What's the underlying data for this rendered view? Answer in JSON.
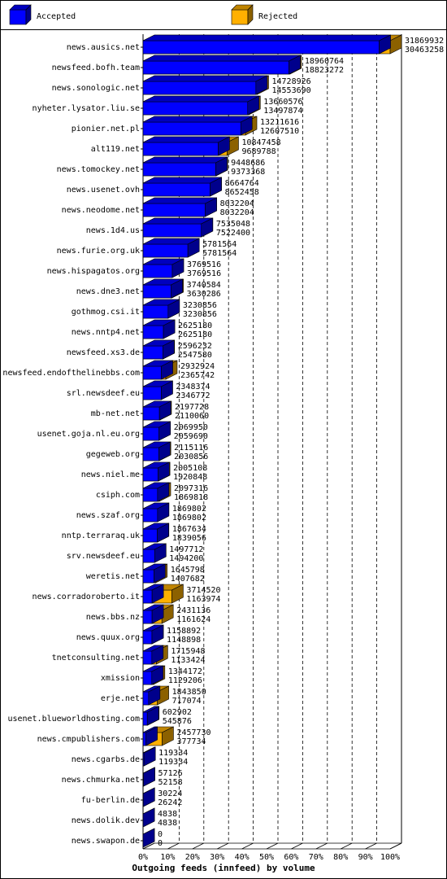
{
  "chart_data": {
    "type": "bar",
    "orientation": "horizontal",
    "bar_mode": "overlay",
    "legend": "top",
    "xlabel": "Outgoing feeds (innfeed) by volume",
    "categories": [
      "news.ausics.net",
      "newsfeed.bofh.team",
      "news.sonologic.net",
      "nyheter.lysator.liu.se",
      "pionier.net.pl",
      "alt119.net",
      "news.tomockey.net",
      "news.usenet.ovh",
      "news.neodome.net",
      "news.1d4.us",
      "news.furie.org.uk",
      "news.hispagatos.org",
      "news.dne3.net",
      "gothmog.csi.it",
      "news.nntp4.net",
      "newsfeed.xs3.de",
      "newsfeed.endofthelinebbs.com",
      "srl.newsdeef.eu",
      "mb-net.net",
      "usenet.goja.nl.eu.org",
      "gegeweb.org",
      "news.niel.me",
      "csiph.com",
      "news.szaf.org",
      "nntp.terraraq.uk",
      "srv.newsdeef.eu",
      "weretis.net",
      "news.corradoroberto.it",
      "news.bbs.nz",
      "news.quux.org",
      "tnetconsulting.net",
      "xmission",
      "erje.net",
      "usenet.blueworldhosting.com",
      "news.cmpublishers.com",
      "news.cgarbs.de",
      "news.chmurka.net",
      "fu-berlin.de",
      "news.dolik.dev",
      "news.swapon.de"
    ],
    "series": [
      {
        "name": "Rejected",
        "color": "#ffb000",
        "values": [
          31869932,
          18960764,
          14728926,
          13660576,
          13211616,
          10847458,
          9448686,
          8664764,
          8032204,
          7535048,
          5781564,
          3769516,
          3740584,
          3230856,
          2625180,
          2596232,
          2932924,
          2348374,
          2197728,
          2069950,
          2115116,
          2005108,
          2097316,
          1869802,
          1867634,
          1497712,
          1645798,
          3714520,
          2431136,
          1158892,
          1715948,
          1344172,
          1843850,
          602902,
          2457730,
          119334,
          57126,
          30224,
          4838,
          0
        ]
      },
      {
        "name": "Accepted",
        "color": "#0000ff",
        "values": [
          30463258,
          18823272,
          14553690,
          13497874,
          12607510,
          9689788,
          9373368,
          8652458,
          8032204,
          7522400,
          5781564,
          3769516,
          3630286,
          3230856,
          2625180,
          2547580,
          2365742,
          2346772,
          2110060,
          2059690,
          2030856,
          1920848,
          1869818,
          1869802,
          1839056,
          1494200,
          1407682,
          1163974,
          1161624,
          1148898,
          1133424,
          1129206,
          717074,
          545876,
          377734,
          119334,
          52158,
          26242,
          4838,
          0
        ]
      }
    ],
    "xlim": [
      0,
      31869932
    ],
    "xticks": [
      {
        "value": 0,
        "label": "0%"
      },
      {
        "value": 3186993.2,
        "label": "10%"
      },
      {
        "value": 6373986.4,
        "label": "20%"
      },
      {
        "value": 9560979.6,
        "label": "30%"
      },
      {
        "value": 12747972.8,
        "label": "40%"
      },
      {
        "value": 15934966,
        "label": "50%"
      },
      {
        "value": 19121959.2,
        "label": "60%"
      },
      {
        "value": 22308952.4,
        "label": "70%"
      },
      {
        "value": 25495945.6,
        "label": "80%"
      },
      {
        "value": 28682938.8,
        "label": "90%"
      },
      {
        "value": 31869932,
        "label": "100%"
      }
    ],
    "grid": true
  }
}
